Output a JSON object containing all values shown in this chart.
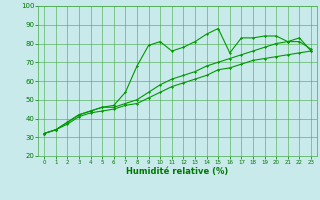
{
  "x": [
    0,
    1,
    2,
    3,
    4,
    5,
    6,
    7,
    8,
    9,
    10,
    11,
    12,
    13,
    14,
    15,
    16,
    17,
    18,
    19,
    20,
    21,
    22,
    23
  ],
  "line1": [
    32,
    34,
    38,
    42,
    44,
    46,
    47,
    54,
    68,
    79,
    81,
    76,
    78,
    81,
    85,
    88,
    75,
    83,
    83,
    84,
    84,
    81,
    83,
    76
  ],
  "line2": [
    32,
    34,
    38,
    42,
    44,
    46,
    46,
    48,
    50,
    54,
    58,
    61,
    63,
    65,
    68,
    70,
    72,
    74,
    76,
    78,
    80,
    81,
    81,
    77
  ],
  "line3": [
    32,
    34,
    37,
    41,
    43,
    44,
    45,
    47,
    48,
    51,
    54,
    57,
    59,
    61,
    63,
    66,
    67,
    69,
    71,
    72,
    73,
    74,
    75,
    76
  ],
  "bg_color": "#c8eaea",
  "grid_color": "#44aa44",
  "line_color": "#009900",
  "xlabel": "Humidité relative (%)",
  "xlabel_color": "#007700",
  "tick_color": "#007700",
  "ylim": [
    20,
    100
  ],
  "xlim": [
    -0.5,
    23.5
  ],
  "yticks": [
    20,
    30,
    40,
    50,
    60,
    70,
    80,
    90,
    100
  ],
  "xticks": [
    0,
    1,
    2,
    3,
    4,
    5,
    6,
    7,
    8,
    9,
    10,
    11,
    12,
    13,
    14,
    15,
    16,
    17,
    18,
    19,
    20,
    21,
    22,
    23
  ],
  "figsize": [
    3.2,
    2.0
  ],
  "dpi": 100
}
